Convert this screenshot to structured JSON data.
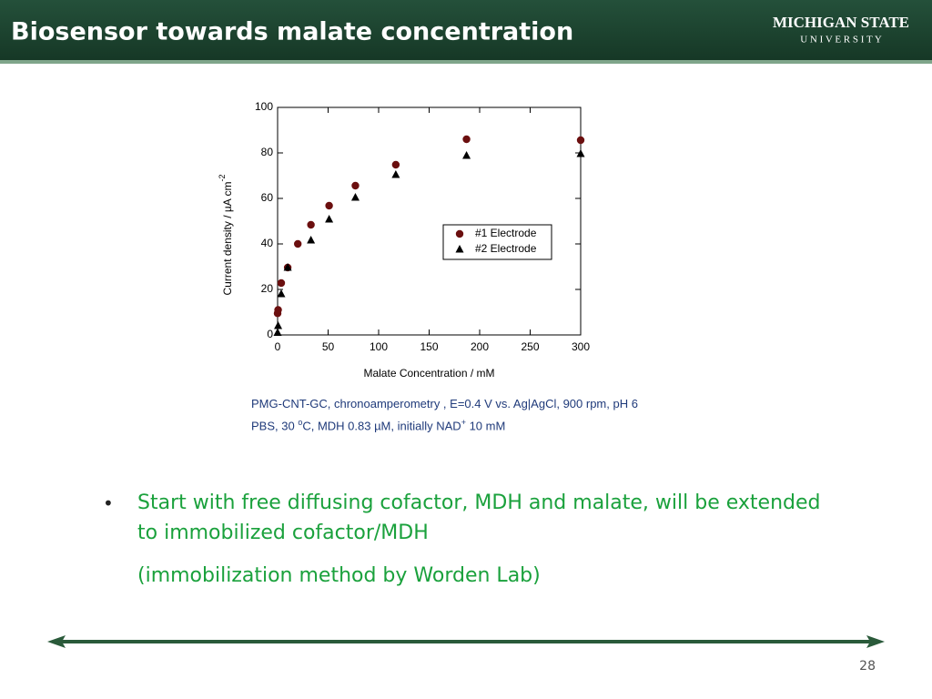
{
  "header": {
    "title": "Biosensor towards malate concentration",
    "logo_line1": "MICHIGAN STATE",
    "logo_line2": "U N I V E R S I T Y"
  },
  "chart_data": {
    "type": "scatter",
    "xlabel": "Malate Concentration / mM",
    "ylabel": [
      "Current density / µA cm",
      "-2"
    ],
    "x": [
      0,
      0.5,
      3.6,
      10,
      20,
      33,
      51,
      77,
      117,
      187,
      300
    ],
    "series": [
      {
        "name": "#1 Electrode",
        "color": "#6b0f0f",
        "marker": "circle",
        "values": [
          9.5,
          11,
          22.8,
          29.6,
          40,
          48.4,
          56.8,
          65.6,
          74.8,
          86,
          85.6
        ]
      },
      {
        "name": "#2 Electrode",
        "color": "#000000",
        "marker": "triangle",
        "values": [
          1,
          4,
          18,
          29.6,
          null,
          41.6,
          50.8,
          60.4,
          70.4,
          78.8,
          79.6
        ]
      }
    ],
    "xlim": [
      0,
      300
    ],
    "ylim": [
      0,
      100
    ],
    "xticks": [
      0,
      50,
      100,
      150,
      200,
      250,
      300
    ],
    "yticks": [
      0,
      20,
      40,
      60,
      80,
      100
    ],
    "grid": false,
    "legend": "right"
  },
  "caption": [
    "PMG-CNT-GC, chronoamperometry , E=0.4 V vs. Ag|AgCl, 900 rpm, pH 6 PBS, 30 ",
    "o",
    "C, MDH 0.83 µM, initially NAD",
    "+",
    " 10 mM"
  ],
  "bullets": [
    "Start with free diffusing cofactor, MDH and malate, will be extended to immobilized cofactor/MDH",
    "(immobilization method by Worden Lab)"
  ],
  "page_number": "28"
}
